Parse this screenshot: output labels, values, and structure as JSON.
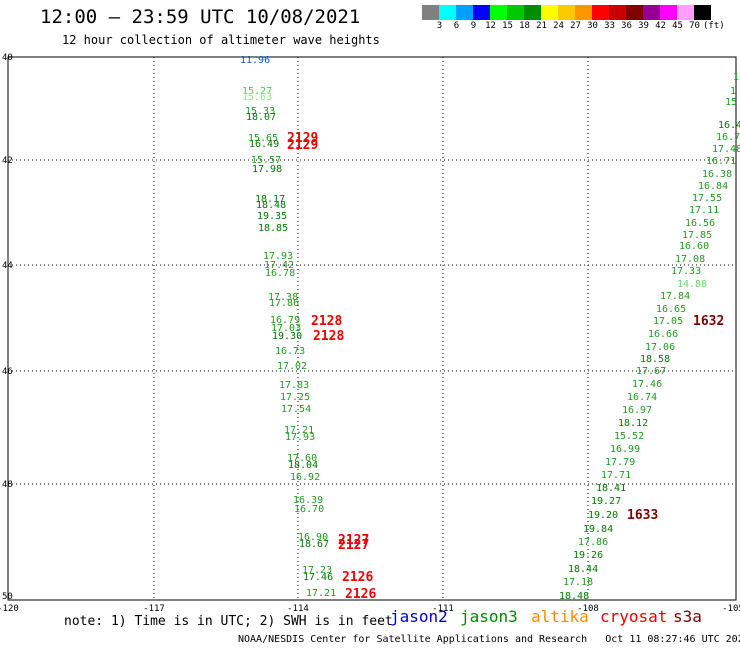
{
  "header": {
    "title": "12:00 — 23:59 UTC 10/08/2021",
    "subtitle": "12 hour collection of altimeter wave heights"
  },
  "legend": {
    "colors": [
      "#808080",
      "#00ffff",
      "#00a0ff",
      "#0000ff",
      "#00ff00",
      "#00c800",
      "#008c00",
      "#ffff00",
      "#ffc800",
      "#ff9600",
      "#ff0000",
      "#c80000",
      "#800000",
      "#960096",
      "#ff00ff",
      "#ffa0ff",
      "#000000"
    ],
    "ticks": [
      "3",
      "6",
      "9",
      "12",
      "15",
      "18",
      "21",
      "24",
      "27",
      "30",
      "33",
      "36",
      "39",
      "42",
      "45",
      "70"
    ],
    "unit": "(ft)"
  },
  "axes": {
    "lat_labels": [
      "40",
      "42",
      "44",
      "46",
      "48",
      "50"
    ],
    "lon_labels": [
      "-120",
      "-117",
      "-114",
      "-111",
      "-108",
      "-105"
    ]
  },
  "tracks": {
    "west": [
      {
        "v": "11.96",
        "c": "#0055cc"
      },
      {
        "v": "15.27",
        "c": "#44cc44"
      },
      {
        "v": "15.63",
        "c": "#88ee88"
      },
      {
        "v": "15.33",
        "c": "#229922"
      },
      {
        "v": "18.07",
        "c": "#007700"
      },
      {
        "v": "15.65",
        "c": "#229922"
      },
      {
        "v": "16.49",
        "c": "#007700"
      },
      {
        "v": "15.57",
        "c": "#229922"
      },
      {
        "v": "17.98",
        "c": "#007700"
      },
      {
        "v": "18.17",
        "c": "#007700"
      },
      {
        "v": "18.48",
        "c": "#007700"
      },
      {
        "v": "19.35",
        "c": "#007700"
      },
      {
        "v": "18.85",
        "c": "#007700"
      },
      {
        "v": "17.93",
        "c": "#229922"
      },
      {
        "v": "17.42",
        "c": "#229922"
      },
      {
        "v": "16.78",
        "c": "#229922"
      },
      {
        "v": "17.38",
        "c": "#229922"
      },
      {
        "v": "17.86",
        "c": "#229922"
      },
      {
        "v": "16.79",
        "c": "#229922"
      },
      {
        "v": "17.03",
        "c": "#229922"
      },
      {
        "v": "19.30",
        "c": "#007700"
      },
      {
        "v": "16.73",
        "c": "#229922"
      },
      {
        "v": "17.02",
        "c": "#229922"
      },
      {
        "v": "17.83",
        "c": "#229922"
      },
      {
        "v": "17.25",
        "c": "#229922"
      },
      {
        "v": "17.54",
        "c": "#229922"
      },
      {
        "v": "17.21",
        "c": "#229922"
      },
      {
        "v": "17.93",
        "c": "#229922"
      },
      {
        "v": "17.60",
        "c": "#229922"
      },
      {
        "v": "18.04",
        "c": "#007700"
      },
      {
        "v": "16.92",
        "c": "#229922"
      },
      {
        "v": "16.39",
        "c": "#229922"
      },
      {
        "v": "16.70",
        "c": "#229922"
      },
      {
        "v": "16.90",
        "c": "#229922"
      },
      {
        "v": "18.67",
        "c": "#007700"
      },
      {
        "v": "17.23",
        "c": "#229922"
      },
      {
        "v": "17.46",
        "c": "#007700"
      },
      {
        "v": "17.21",
        "c": "#229922"
      }
    ],
    "east": [
      {
        "v": "1",
        "c": "#229922"
      },
      {
        "v": "1",
        "c": "#229922"
      },
      {
        "v": "15",
        "c": "#229922"
      },
      {
        "v": "16.4",
        "c": "#007700"
      },
      {
        "v": "16.79",
        "c": "#229922"
      },
      {
        "v": "17.48",
        "c": "#229922"
      },
      {
        "v": "16.71",
        "c": "#229922"
      },
      {
        "v": "16.38",
        "c": "#229922"
      },
      {
        "v": "16.84",
        "c": "#229922"
      },
      {
        "v": "17.55",
        "c": "#229922"
      },
      {
        "v": "17.11",
        "c": "#229922"
      },
      {
        "v": "16.56",
        "c": "#229922"
      },
      {
        "v": "17.85",
        "c": "#229922"
      },
      {
        "v": "16.60",
        "c": "#229922"
      },
      {
        "v": "17.08",
        "c": "#229922"
      },
      {
        "v": "17.33",
        "c": "#229922"
      },
      {
        "v": "14.88",
        "c": "#66dd66"
      },
      {
        "v": "17.84",
        "c": "#229922"
      },
      {
        "v": "16.65",
        "c": "#229922"
      },
      {
        "v": "17.05",
        "c": "#229922"
      },
      {
        "v": "16.66",
        "c": "#229922"
      },
      {
        "v": "17.06",
        "c": "#229922"
      },
      {
        "v": "18.58",
        "c": "#007700"
      },
      {
        "v": "17.67",
        "c": "#229922"
      },
      {
        "v": "17.46",
        "c": "#229922"
      },
      {
        "v": "16.74",
        "c": "#229922"
      },
      {
        "v": "16.97",
        "c": "#229922"
      },
      {
        "v": "18.12",
        "c": "#007700"
      },
      {
        "v": "15.52",
        "c": "#229922"
      },
      {
        "v": "16.99",
        "c": "#229922"
      },
      {
        "v": "17.79",
        "c": "#229922"
      },
      {
        "v": "17.71",
        "c": "#229922"
      },
      {
        "v": "18.41",
        "c": "#007700"
      },
      {
        "v": "19.27",
        "c": "#007700"
      },
      {
        "v": "19.20",
        "c": "#007700"
      },
      {
        "v": "19.84",
        "c": "#007700"
      },
      {
        "v": "17.86",
        "c": "#229922"
      },
      {
        "v": "19.26",
        "c": "#007700"
      },
      {
        "v": "18.44",
        "c": "#007700"
      },
      {
        "v": "17.18",
        "c": "#229922"
      },
      {
        "v": "18.48",
        "c": "#007700"
      }
    ],
    "times": [
      {
        "t": "2129",
        "c": "#ee0000"
      },
      {
        "t": "2129",
        "c": "#ee0000"
      },
      {
        "t": "2128",
        "c": "#ee0000"
      },
      {
        "t": "2128",
        "c": "#ee0000"
      },
      {
        "t": "2127",
        "c": "#ee0000"
      },
      {
        "t": "2127",
        "c": "#ee0000"
      },
      {
        "t": "2126",
        "c": "#ee0000"
      },
      {
        "t": "2126",
        "c": "#ee0000"
      },
      {
        "t": "1632",
        "c": "#800000"
      },
      {
        "t": "1633",
        "c": "#800000"
      }
    ]
  },
  "footer": {
    "note": "note: 1) Time is in UTC; 2) SWH is in feet",
    "satellites": [
      {
        "name": "jason2",
        "color": "#0000dd"
      },
      {
        "name": "jason3",
        "color": "#008800"
      },
      {
        "name": "altika",
        "color": "#ff8c00"
      },
      {
        "name": "cryosat",
        "color": "#ee0000"
      },
      {
        "name": "s3a",
        "color": "#800000"
      }
    ],
    "credit": "NOAA/NESDIS Center for Satellite Applications and Research   Oct 11 08:27:46 UTC 2021"
  }
}
